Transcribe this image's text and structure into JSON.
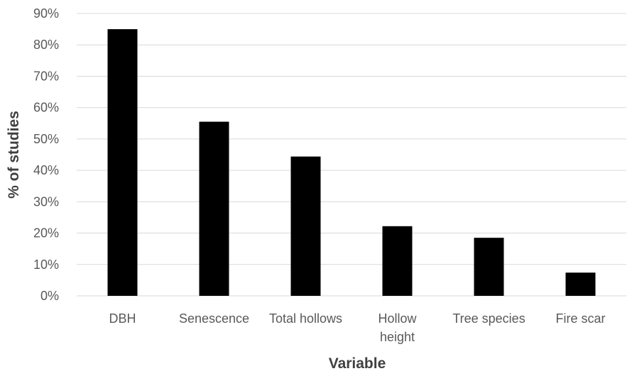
{
  "chart_data": {
    "type": "bar",
    "title": "",
    "xlabel": "Variable",
    "ylabel": "% of studies",
    "categories": [
      "DBH",
      "Senescence",
      "Total hollows",
      "Hollow height",
      "Tree species",
      "Fire scar"
    ],
    "category_lines": [
      [
        "DBH"
      ],
      [
        "Senescence"
      ],
      [
        "Total hollows"
      ],
      [
        "Hollow",
        "height"
      ],
      [
        "Tree species"
      ],
      [
        "Fire scar"
      ]
    ],
    "values": [
      85,
      55.5,
      44.4,
      22.2,
      18.5,
      7.4
    ],
    "value_unit": "%",
    "ylim": [
      0,
      90
    ],
    "yticks": [
      0,
      10,
      20,
      30,
      40,
      50,
      60,
      70,
      80,
      90
    ],
    "ytick_labels": [
      "0%",
      "10%",
      "20%",
      "30%",
      "40%",
      "50%",
      "60%",
      "70%",
      "80%",
      "90%"
    ],
    "grid": true,
    "legend": "none",
    "colors": {
      "bar": "#000000",
      "grid": "#d9d9d9",
      "tick_text": "#595959",
      "axis_title": "#404040"
    }
  }
}
